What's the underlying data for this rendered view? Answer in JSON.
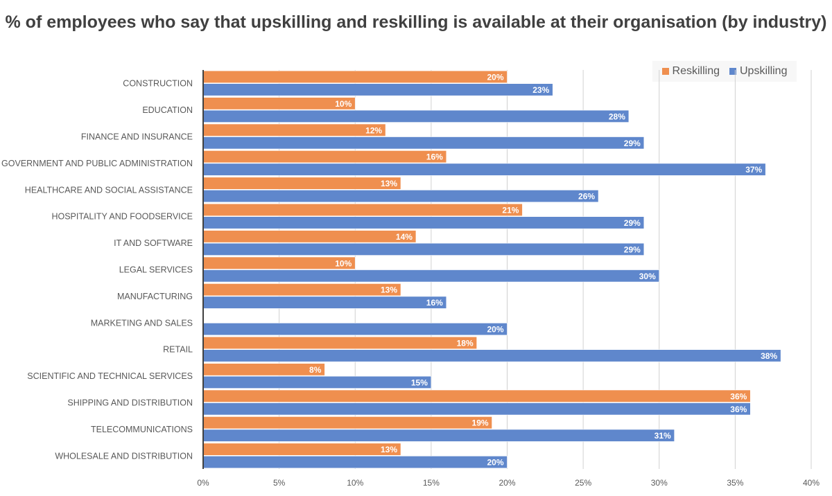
{
  "chart_data": {
    "type": "bar",
    "orientation": "horizontal",
    "title": "% of employees who say that upskilling and reskilling is available at their organisation (by industry)",
    "categories": [
      "CONSTRUCTION",
      "EDUCATION",
      "FINANCE AND INSURANCE",
      "GOVERNMENT AND PUBLIC ADMINISTRATION",
      "HEALTHCARE AND SOCIAL ASSISTANCE",
      "HOSPITALITY AND FOODSERVICE",
      "IT AND SOFTWARE",
      "LEGAL SERVICES",
      "MANUFACTURING",
      "MARKETING AND SALES",
      "RETAIL",
      "SCIENTIFIC AND TECHNICAL SERVICES",
      "SHIPPING AND DISTRIBUTION",
      "TELECOMMUNICATIONS",
      "WHOLESALE AND DISTRIBUTION"
    ],
    "series": [
      {
        "name": "Reskilling",
        "color": "#EF8F4F",
        "values": [
          20,
          10,
          12,
          16,
          13,
          21,
          14,
          10,
          13,
          null,
          18,
          8,
          36,
          19,
          13
        ]
      },
      {
        "name": "Upskilling",
        "color": "#5F87CC",
        "values": [
          23,
          28,
          29,
          37,
          26,
          29,
          29,
          30,
          16,
          20,
          38,
          15,
          36,
          31,
          20
        ]
      }
    ],
    "xlim": [
      0,
      40
    ],
    "xticks": [
      "0%",
      "5%",
      "10%",
      "15%",
      "20%",
      "25%",
      "30%",
      "35%",
      "40%"
    ],
    "grid": "vertical",
    "legend": "top-right",
    "value_suffix": "%"
  }
}
